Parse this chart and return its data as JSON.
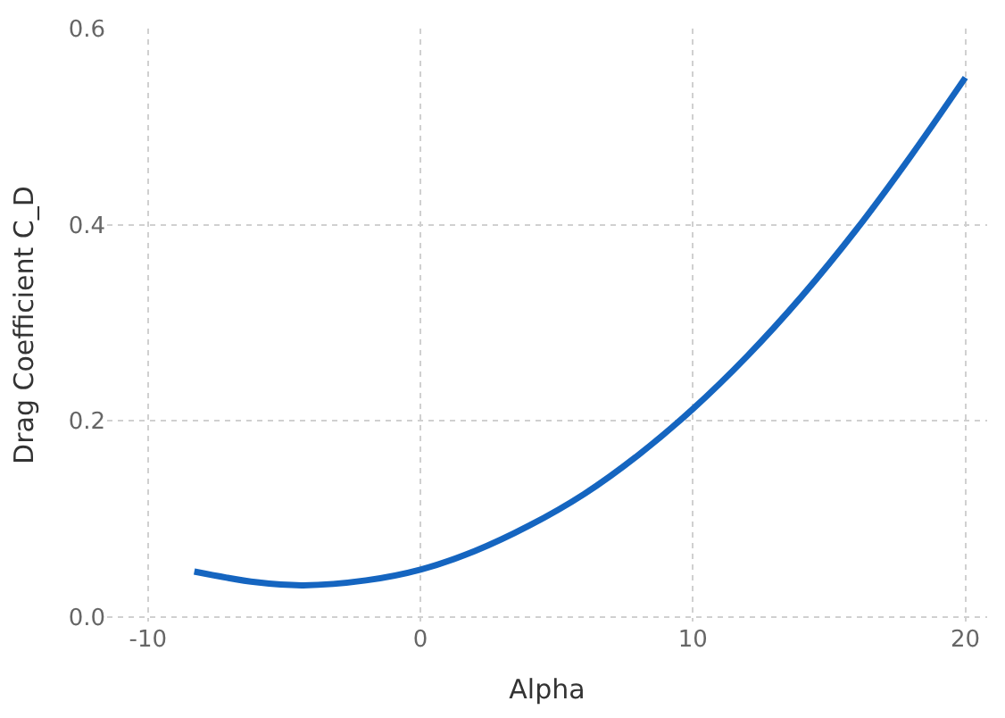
{
  "chart_data": {
    "type": "line",
    "xlabel": "Alpha",
    "ylabel": "Drag Coefficient C_D",
    "x": [
      -8.3,
      -6,
      -4.3,
      -2,
      0,
      2,
      4,
      6,
      8,
      10,
      12,
      14,
      16,
      18,
      20
    ],
    "series": [
      {
        "color": "#1565c0",
        "values": [
          0.046,
          0.035,
          0.032,
          0.037,
          0.048,
          0.067,
          0.093,
          0.125,
          0.165,
          0.212,
          0.266,
          0.327,
          0.395,
          0.47,
          0.55
        ]
      }
    ],
    "xlim": [
      -11.5,
      20.8
    ],
    "xticks": [
      -10,
      0,
      10,
      20
    ],
    "ylim": [
      -0.005,
      0.6
    ],
    "yticks": [
      {
        "value": 0,
        "label": "0.0"
      },
      0.2,
      0.4,
      0.6
    ],
    "grid": true,
    "legend": false,
    "marker": "none",
    "line_style": "solid"
  }
}
